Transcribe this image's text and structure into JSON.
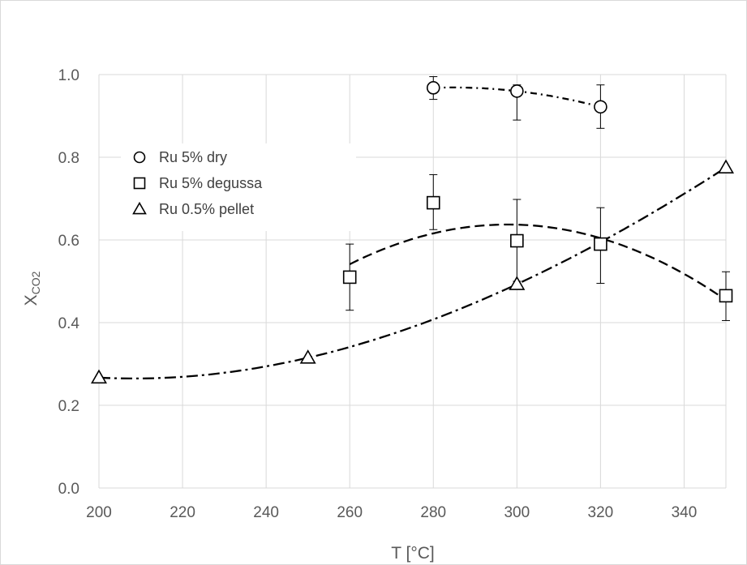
{
  "chart_data": {
    "type": "scatter",
    "xlabel": "T [°C]",
    "ylabel": {
      "main": "X",
      "sub": "CO2"
    },
    "xlim": [
      200,
      350
    ],
    "ylim": [
      0,
      1.0
    ],
    "x_ticks": [
      "200",
      "220",
      "240",
      "260",
      "280",
      "300",
      "320",
      "340"
    ],
    "y_ticks": [
      "0.0",
      "0.2",
      "0.4",
      "0.6",
      "0.8",
      "1.0"
    ],
    "grid": true,
    "legend_position": "upper-left",
    "series": [
      {
        "name": "Ru 5% dry",
        "marker": "circle",
        "x": [
          280,
          300,
          320
        ],
        "y": [
          0.968,
          0.96,
          0.922
        ],
        "err_low": [
          0.94,
          0.89,
          0.87
        ],
        "err_high": [
          0.995,
          0.975,
          0.975
        ],
        "trend": {
          "style": "short-dash-dot",
          "degree": 2
        }
      },
      {
        "name": "Ru 5% degussa",
        "marker": "square",
        "x": [
          260,
          280,
          300,
          320,
          350
        ],
        "y": [
          0.51,
          0.69,
          0.598,
          0.59,
          0.465
        ],
        "err_low": [
          0.43,
          0.625,
          0.5,
          0.495,
          0.405
        ],
        "err_high": [
          0.59,
          0.758,
          0.698,
          0.678,
          0.523
        ],
        "trend": {
          "style": "dash",
          "degree": 2
        }
      },
      {
        "name": "Ru 0.5% pellet",
        "marker": "triangle",
        "x": [
          200,
          250,
          300,
          350
        ],
        "y": [
          0.267,
          0.315,
          0.493,
          0.775
        ],
        "trend": {
          "style": "long-dash-dot",
          "degree": 3
        }
      }
    ]
  }
}
